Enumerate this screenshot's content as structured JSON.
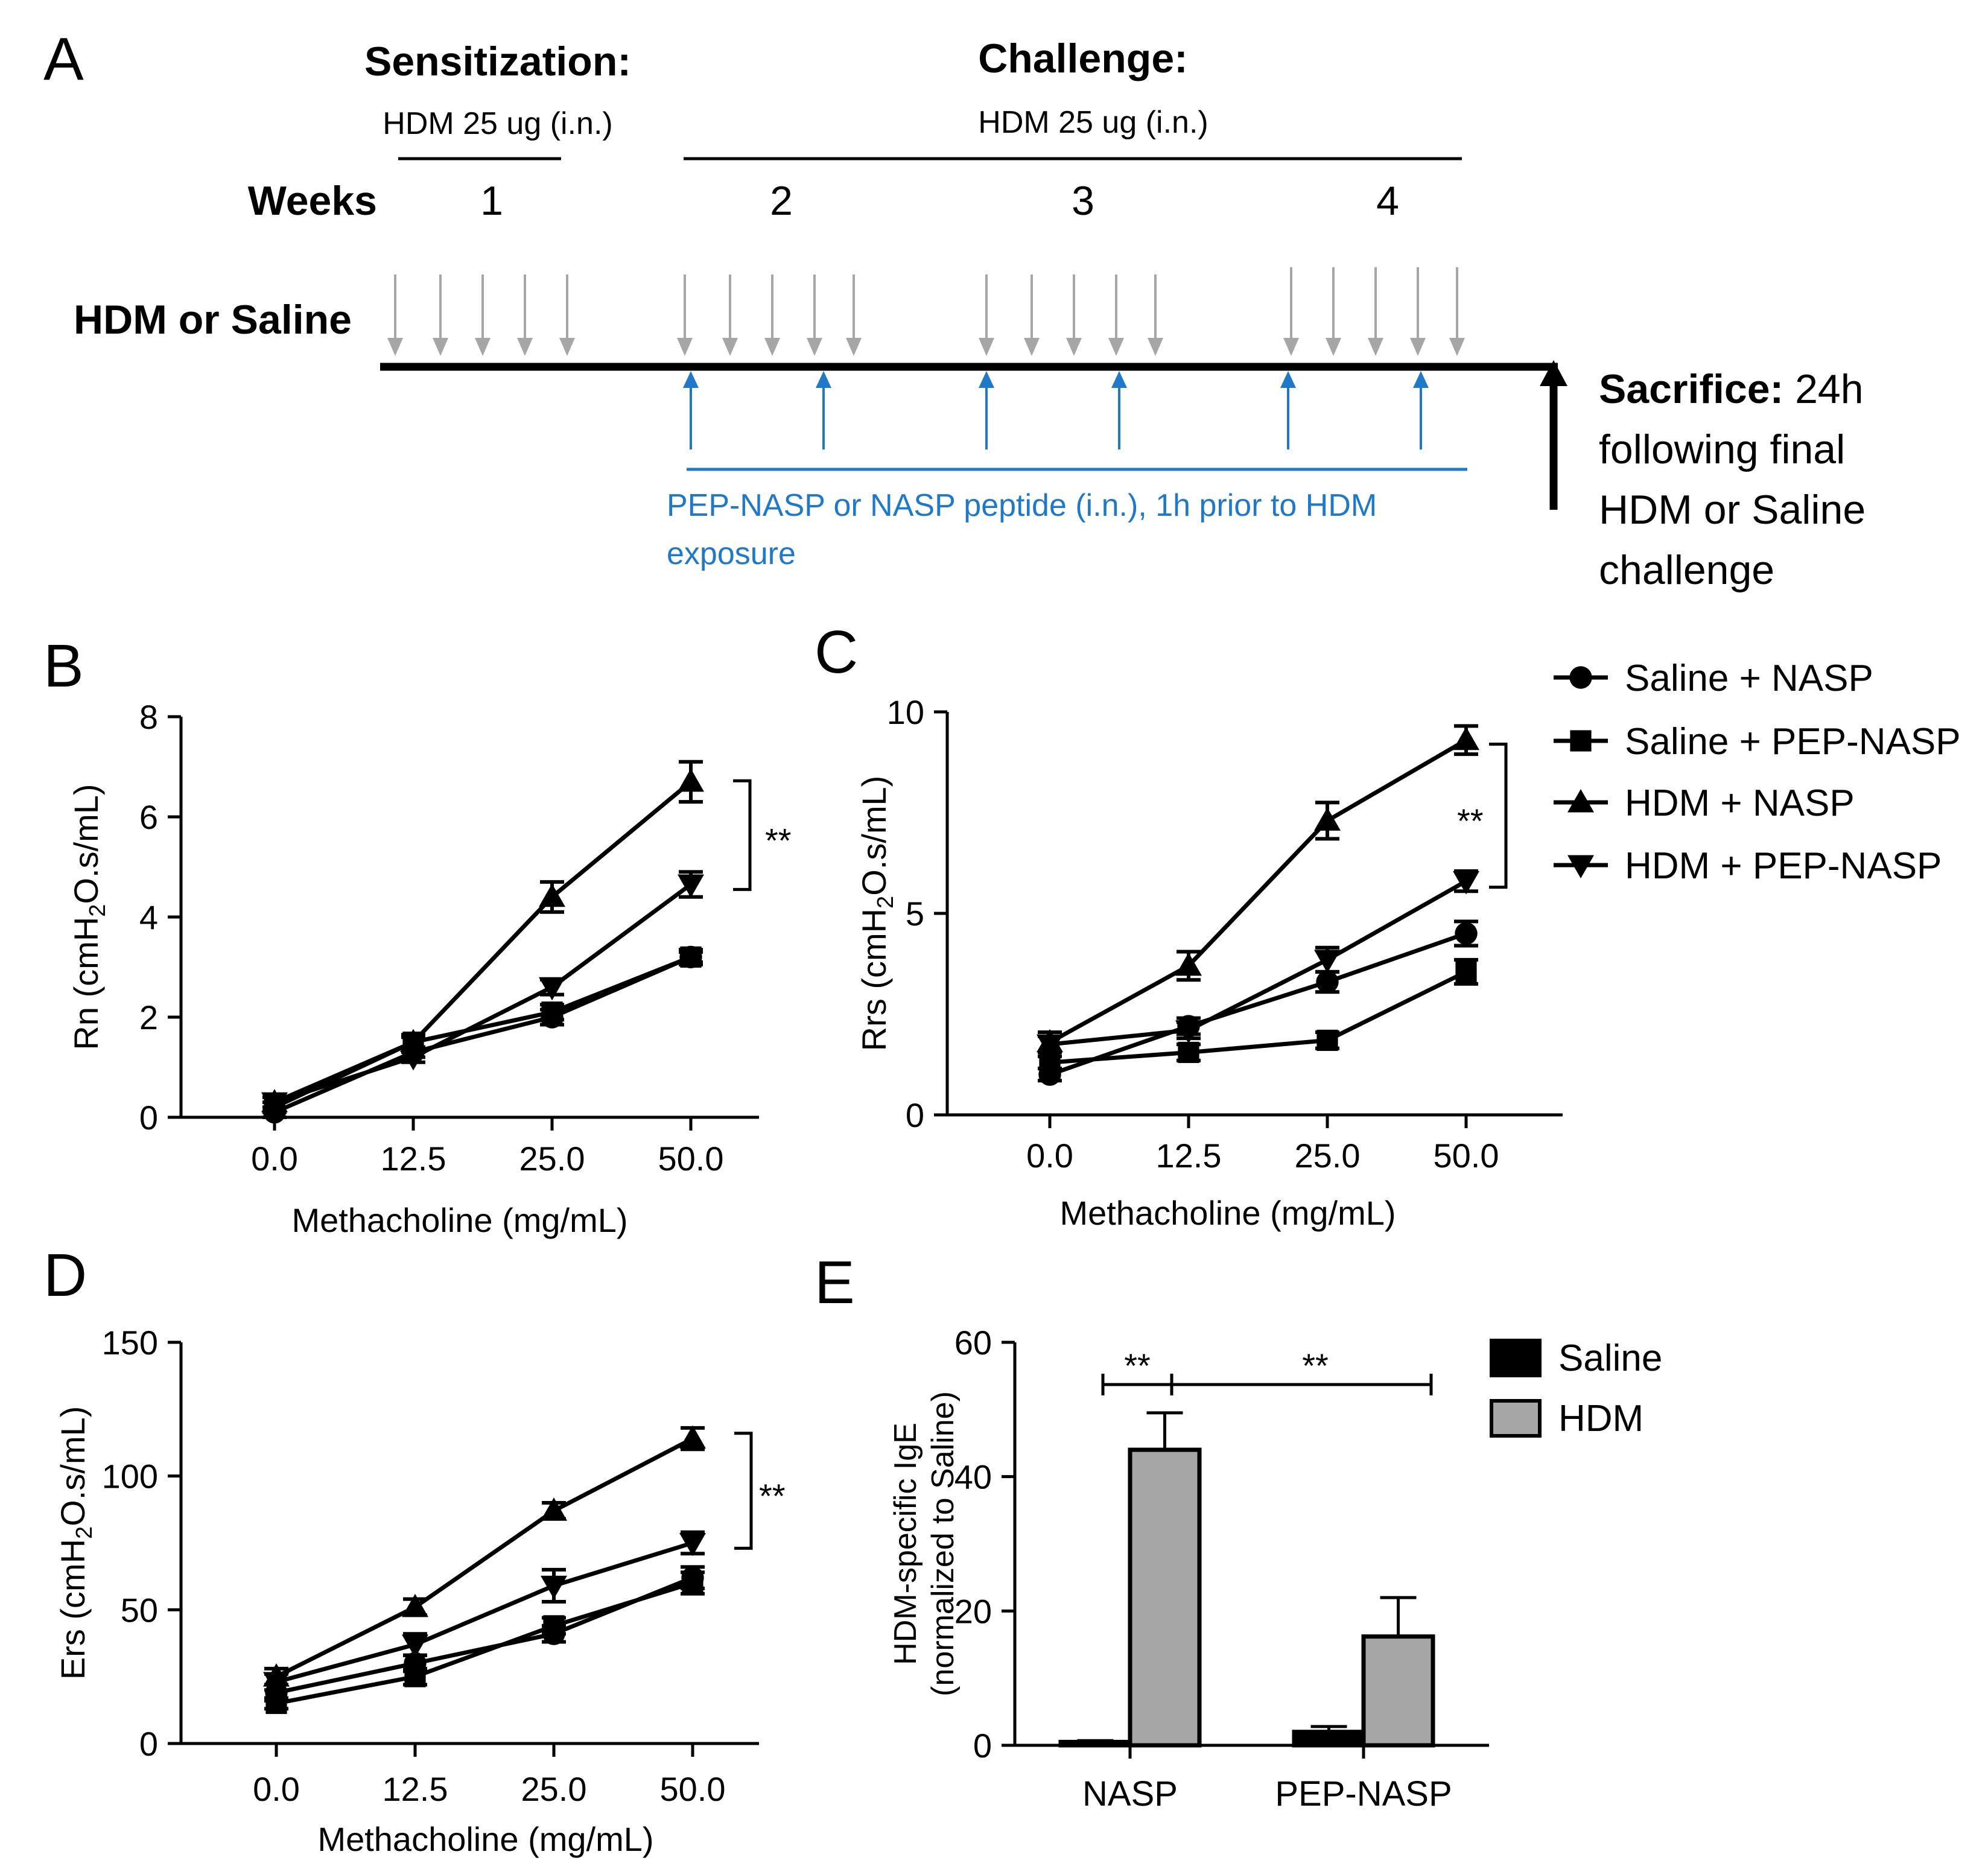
{
  "panel_labels": [
    "A",
    "B",
    "C",
    "D",
    "E"
  ],
  "timeline": {
    "sensitization_label": "Sensitization:",
    "sensitization_dose": "HDM 25 ug (i.n.)",
    "challenge_label": "Challenge:",
    "challenge_dose": "HDM 25 ug (i.n.)",
    "weeks_label": "Weeks",
    "weeks": [
      "1",
      "2",
      "3",
      "4"
    ],
    "row_label": "HDM or Saline",
    "peptide_line1": "PEP-NASP or NASP peptide (i.n.), 1h prior to HDM",
    "peptide_line2": "exposure",
    "sacrifice_bold": "Sacrifice:",
    "sacrifice_lines": [
      "24h",
      "following final",
      "HDM or Saline",
      "challenge"
    ],
    "colors": {
      "dose_arrow": "#a6a6a6",
      "peptide": "#1f78c8",
      "line": "#000000"
    }
  },
  "legend_lines": [
    {
      "label": "Saline + NASP",
      "marker": "circle"
    },
    {
      "label": "Saline + PEP-NASP",
      "marker": "square"
    },
    {
      "label": "HDM + NASP",
      "marker": "triangle-up"
    },
    {
      "label": "HDM + PEP-NASP",
      "marker": "triangle-down"
    }
  ],
  "legend_bars": [
    {
      "label": "Saline",
      "color": "#000000"
    },
    {
      "label": "HDM",
      "color": "#a6a6a6"
    }
  ],
  "chart_data": [
    {
      "panel": "B",
      "type": "line",
      "categories": [
        "0.0",
        "12.5",
        "25.0",
        "50.0"
      ],
      "xlabel": "Methacholine (mg/mL)",
      "ylabel_main": "Rn (cmH",
      "ylabel_sub": "2",
      "ylabel_rest": "O.s/mL)",
      "ylim": [
        0,
        8
      ],
      "yticks": [
        "0",
        "2",
        "4",
        "6",
        "8"
      ],
      "series": [
        {
          "name": "Saline + NASP",
          "marker": "circle",
          "values": [
            0.1,
            1.3,
            2.0,
            3.2
          ],
          "err": [
            0.1,
            0.1,
            0.15,
            0.1
          ]
        },
        {
          "name": "Saline + PEP-NASP",
          "marker": "square",
          "values": [
            0.2,
            1.5,
            2.1,
            3.2
          ],
          "err": [
            0.1,
            0.1,
            0.15,
            0.15
          ]
        },
        {
          "name": "HDM + NASP",
          "marker": "triangle-up",
          "values": [
            0.3,
            1.5,
            4.4,
            6.7
          ],
          "err": [
            0.1,
            0.15,
            0.3,
            0.4
          ]
        },
        {
          "name": "HDM + PEP-NASP",
          "marker": "triangle-down",
          "values": [
            0.3,
            1.2,
            2.6,
            4.65
          ],
          "err": [
            0.1,
            0.1,
            0.15,
            0.25
          ]
        }
      ],
      "significance": {
        "label": "**",
        "from": 4.55,
        "to": 6.72
      }
    },
    {
      "panel": "C",
      "type": "line",
      "categories": [
        "0.0",
        "12.5",
        "25.0",
        "50.0"
      ],
      "xlabel": "Methacholine (mg/mL)",
      "ylabel_main": "Rrs (cmH",
      "ylabel_sub": "2",
      "ylabel_rest": "O.s/mL)",
      "ylim": [
        0,
        10
      ],
      "yticks": [
        "0",
        "5",
        "10"
      ],
      "series": [
        {
          "name": "Saline + NASP",
          "marker": "circle",
          "values": [
            1.0,
            2.2,
            3.3,
            4.5
          ],
          "err": [
            0.15,
            0.2,
            0.25,
            0.3
          ]
        },
        {
          "name": "Saline + PEP-NASP",
          "marker": "square",
          "values": [
            1.3,
            1.55,
            1.85,
            3.55
          ],
          "err": [
            0.15,
            0.2,
            0.2,
            0.3
          ]
        },
        {
          "name": "HDM + NASP",
          "marker": "triangle-up",
          "values": [
            1.8,
            3.7,
            7.3,
            9.3
          ],
          "err": [
            0.25,
            0.35,
            0.45,
            0.35
          ]
        },
        {
          "name": "HDM + PEP-NASP",
          "marker": "triangle-down",
          "values": [
            1.75,
            2.1,
            3.85,
            5.8
          ],
          "err": [
            0.2,
            0.2,
            0.3,
            0.25
          ]
        }
      ],
      "significance": {
        "label": "**",
        "from": 5.65,
        "to": 9.2
      }
    },
    {
      "panel": "D",
      "type": "line",
      "categories": [
        "0.0",
        "12.5",
        "25.0",
        "50.0"
      ],
      "xlabel": "Methacholine (mg/mL)",
      "ylabel_main": "Ers (cmH",
      "ylabel_sub": "2",
      "ylabel_rest": "O.s/mL)",
      "ylim": [
        0,
        150
      ],
      "yticks": [
        "0",
        "50",
        "100",
        "150"
      ],
      "series": [
        {
          "name": "Saline + NASP",
          "marker": "circle",
          "values": [
            19,
            30,
            41,
            62
          ],
          "err": [
            3,
            3,
            3,
            4
          ]
        },
        {
          "name": "Saline + PEP-NASP",
          "marker": "square",
          "values": [
            15,
            25,
            44,
            60
          ],
          "err": [
            2,
            3,
            3,
            4
          ]
        },
        {
          "name": "HDM + NASP",
          "marker": "triangle-up",
          "values": [
            25,
            51,
            87,
            114
          ],
          "err": [
            3,
            3,
            3,
            4
          ]
        },
        {
          "name": "HDM + PEP-NASP",
          "marker": "triangle-down",
          "values": [
            23,
            37,
            59,
            75
          ],
          "err": [
            3,
            4,
            6,
            4
          ]
        }
      ],
      "significance": {
        "label": "**",
        "from": 73,
        "to": 116
      }
    },
    {
      "panel": "E",
      "type": "bar",
      "categories": [
        "NASP",
        "PEP-NASP"
      ],
      "ylabel_line1": "HDM-specific IgE",
      "ylabel_line2": "(normalized to Saline)",
      "ylim": [
        0,
        60
      ],
      "yticks": [
        "0",
        "20",
        "40",
        "60"
      ],
      "series": [
        {
          "name": "Saline",
          "values": [
            0.5,
            2.0
          ],
          "err": [
            0.2,
            0.8
          ]
        },
        {
          "name": "HDM",
          "values": [
            44,
            16.2
          ],
          "err": [
            5.5,
            5.8
          ]
        }
      ],
      "significance": [
        {
          "label": "**",
          "between": "Saline NASP vs HDM NASP"
        },
        {
          "label": "**",
          "between": "HDM NASP vs HDM PEP-NASP"
        }
      ]
    }
  ]
}
